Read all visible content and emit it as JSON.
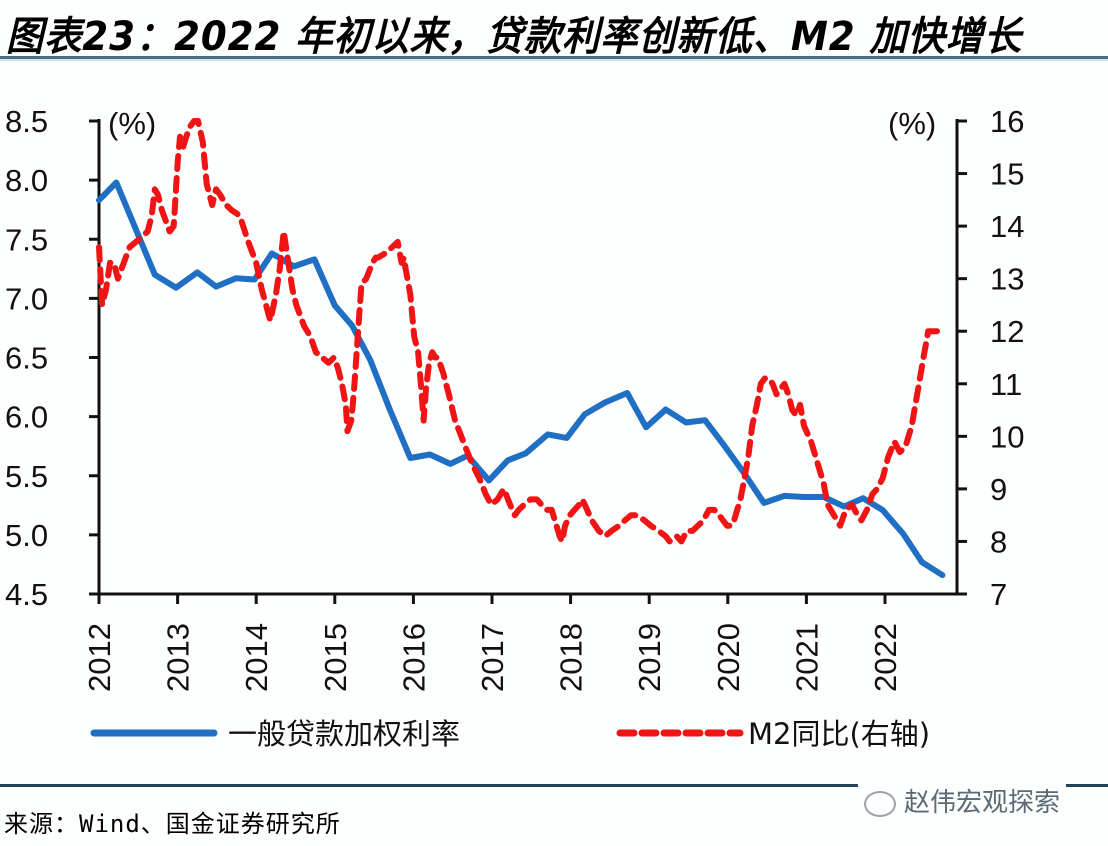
{
  "header": {
    "title": "图表23：2022 年初以来，贷款利率创新低、M2 加快增长"
  },
  "footer": {
    "source": "来源：Wind、国金证券研究所",
    "watermark": "赵伟宏观探索"
  },
  "colors": {
    "loan_rate": "#1f6fc4",
    "m2": "#f01414",
    "axis": "#111111"
  },
  "chart_data": {
    "type": "line",
    "title": "2022 年初以来，贷款利率创新低、M2 加快增长",
    "xlabel": "",
    "ylabel_left": "(%)",
    "ylabel_right": "(%)",
    "xlim": [
      2012,
      2023.0
    ],
    "ylim_left": [
      4.5,
      8.5
    ],
    "ylim_right": [
      7,
      16
    ],
    "x_ticks": [
      "2012",
      "2013",
      "2014",
      "2015",
      "2016",
      "2017",
      "2018",
      "2019",
      "2020",
      "2021",
      "2022"
    ],
    "y_ticks_left": [
      "8.5",
      "8.0",
      "7.5",
      "7.0",
      "6.5",
      "6.0",
      "5.5",
      "5.0",
      "4.5"
    ],
    "y_ticks_right": [
      "16",
      "15",
      "14",
      "13",
      "12",
      "11",
      "10",
      "9",
      "8",
      "7"
    ],
    "grid": false,
    "legend_position": "bottom",
    "series": [
      {
        "name": "一般贷款加权利率",
        "axis": "left",
        "style": "solid",
        "x": [
          2012.0,
          2012.22,
          2012.71,
          2012.98,
          2013.25,
          2013.49,
          2013.74,
          2013.98,
          2014.2,
          2014.48,
          2014.74,
          2015.0,
          2015.22,
          2015.45,
          2015.7,
          2015.96,
          2016.21,
          2016.47,
          2016.69,
          2016.96,
          2017.2,
          2017.43,
          2017.71,
          2017.95,
          2018.18,
          2018.44,
          2018.72,
          2018.96,
          2019.21,
          2019.47,
          2019.71,
          2019.96,
          2020.21,
          2020.46,
          2020.72,
          2020.97,
          2021.22,
          2021.48,
          2021.72,
          2021.97,
          2022.23,
          2022.47,
          2022.73
        ],
        "values": [
          7.83,
          7.98,
          7.2,
          7.09,
          7.22,
          7.1,
          7.17,
          7.16,
          7.38,
          7.27,
          7.33,
          6.94,
          6.77,
          6.48,
          6.06,
          5.65,
          5.68,
          5.6,
          5.67,
          5.46,
          5.63,
          5.69,
          5.85,
          5.82,
          6.02,
          6.12,
          6.2,
          5.91,
          6.06,
          5.95,
          5.97,
          5.75,
          5.52,
          5.27,
          5.33,
          5.32,
          5.32,
          5.24,
          5.31,
          5.21,
          5.01,
          4.77,
          4.66
        ]
      },
      {
        "name": "M2同比(右轴)",
        "axis": "right",
        "style": "dashed",
        "x": [
          2012.0,
          2012.04,
          2012.09,
          2012.14,
          2012.19,
          2012.24,
          2012.29,
          2012.34,
          2012.39,
          2012.47,
          2012.55,
          2012.62,
          2012.67,
          2012.71,
          2012.75,
          2012.8,
          2012.85,
          2012.9,
          2012.95,
          2013.0,
          2013.03,
          2013.07,
          2013.11,
          2013.16,
          2013.21,
          2013.26,
          2013.32,
          2013.37,
          2013.44,
          2013.49,
          2013.54,
          2013.62,
          2013.69,
          2013.79,
          2013.9,
          2014.0,
          2014.07,
          2014.18,
          2014.25,
          2014.3,
          2014.35,
          2014.4,
          2014.46,
          2014.51,
          2014.56,
          2014.61,
          2014.69,
          2014.76,
          2014.84,
          2014.92,
          2014.99,
          2015.04,
          2015.09,
          2015.14,
          2015.16,
          2015.21,
          2015.24,
          2015.26,
          2015.31,
          2015.34,
          2015.4,
          2015.48,
          2015.52,
          2015.55,
          2015.66,
          2015.73,
          2015.8,
          2015.85,
          2015.88,
          2015.9,
          2015.96,
          2016.01,
          2016.06,
          2016.1,
          2016.13,
          2016.16,
          2016.2,
          2016.24,
          2016.28,
          2016.31,
          2016.38,
          2016.45,
          2016.53,
          2016.61,
          2016.66,
          2016.74,
          2016.84,
          2016.92,
          2016.99,
          2017.07,
          2017.15,
          2017.23,
          2017.29,
          2017.34,
          2017.41,
          2017.49,
          2017.57,
          2017.63,
          2017.7,
          2017.76,
          2017.82,
          2017.86,
          2017.89,
          2017.93,
          2017.99,
          2018.05,
          2018.11,
          2018.15,
          2018.21,
          2018.27,
          2018.36,
          2018.44,
          2018.52,
          2018.62,
          2018.69,
          2018.77,
          2018.84,
          2018.94,
          2019.02,
          2019.12,
          2019.21,
          2019.26,
          2019.35,
          2019.41,
          2019.48,
          2019.55,
          2019.62,
          2019.69,
          2019.76,
          2019.83,
          2019.89,
          2019.94,
          2019.99,
          2020.04,
          2020.08,
          2020.12,
          2020.16,
          2020.2,
          2020.26,
          2020.31,
          2020.37,
          2020.42,
          2020.47,
          2020.52,
          2020.57,
          2020.62,
          2020.67,
          2020.72,
          2020.77,
          2020.82,
          2020.87,
          2020.92,
          2020.97,
          2021.06,
          2021.14,
          2021.22,
          2021.27,
          2021.35,
          2021.43,
          2021.5,
          2021.58,
          2021.65,
          2021.7,
          2021.77,
          2021.84,
          2021.9,
          2021.97,
          2022.04,
          2022.12,
          2022.19,
          2022.26,
          2022.34,
          2022.41,
          2022.49,
          2022.55,
          2022.65,
          2022.71
        ],
        "values": [
          13.6,
          12.5,
          12.8,
          13.3,
          13.3,
          13.0,
          13.2,
          13.4,
          13.6,
          13.7,
          13.8,
          13.9,
          14.2,
          14.7,
          14.6,
          14.3,
          14.1,
          13.9,
          14.0,
          15.2,
          15.7,
          15.5,
          15.7,
          15.9,
          16.0,
          16.0,
          15.6,
          14.8,
          14.4,
          14.7,
          14.6,
          14.4,
          14.3,
          14.2,
          13.7,
          13.3,
          12.8,
          12.2,
          12.7,
          13.2,
          13.9,
          13.4,
          12.8,
          12.5,
          12.3,
          12.1,
          11.9,
          11.6,
          11.5,
          11.4,
          11.5,
          11.3,
          11.0,
          10.6,
          10.1,
          10.3,
          10.8,
          11.2,
          12.3,
          12.9,
          13.0,
          13.3,
          13.4,
          13.4,
          13.5,
          13.6,
          13.7,
          13.3,
          13.4,
          13.2,
          12.7,
          11.9,
          11.6,
          10.9,
          10.3,
          10.9,
          11.4,
          11.6,
          11.5,
          11.5,
          11.2,
          10.8,
          10.3,
          10.0,
          9.8,
          9.5,
          9.2,
          8.9,
          8.7,
          8.8,
          9.0,
          8.7,
          8.5,
          8.6,
          8.7,
          8.8,
          8.8,
          8.7,
          8.6,
          8.6,
          8.3,
          8.1,
          8.0,
          8.3,
          8.5,
          8.6,
          8.7,
          8.8,
          8.6,
          8.4,
          8.2,
          8.1,
          8.2,
          8.3,
          8.4,
          8.5,
          8.5,
          8.4,
          8.3,
          8.2,
          8.1,
          8.0,
          8.1,
          8.0,
          8.2,
          8.2,
          8.3,
          8.4,
          8.6,
          8.6,
          8.5,
          8.4,
          8.3,
          8.3,
          8.4,
          8.6,
          8.8,
          9.1,
          9.6,
          10.2,
          10.6,
          11.0,
          11.1,
          11.1,
          11.0,
          10.8,
          10.9,
          11.0,
          10.8,
          10.5,
          10.4,
          10.6,
          10.2,
          9.9,
          9.5,
          9.1,
          8.7,
          8.5,
          8.3,
          8.6,
          8.7,
          8.5,
          8.4,
          8.6,
          8.9,
          9.0,
          9.2,
          9.6,
          9.9,
          9.7,
          9.8,
          10.2,
          10.8,
          11.5,
          12.0,
          12.0,
          12.0
        ]
      }
    ]
  }
}
